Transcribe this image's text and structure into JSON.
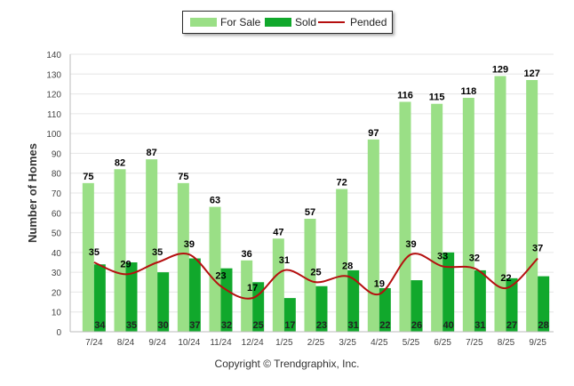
{
  "chart_data": {
    "type": "bar",
    "title": "",
    "xlabel": "",
    "ylabel": "Number of Homes",
    "ylim": [
      0,
      140
    ],
    "yticks": [
      0,
      10,
      20,
      30,
      40,
      50,
      60,
      70,
      80,
      90,
      100,
      110,
      120,
      130,
      140
    ],
    "grid": true,
    "legend_position": "top-center",
    "categories": [
      "7/24",
      "8/24",
      "9/24",
      "10/24",
      "11/24",
      "12/24",
      "1/25",
      "2/25",
      "3/25",
      "4/25",
      "5/25",
      "6/25",
      "7/25",
      "8/25",
      "9/25"
    ],
    "series": [
      {
        "name": "For Sale",
        "kind": "bar",
        "color": "#9adf86",
        "values": [
          75,
          82,
          87,
          75,
          63,
          36,
          47,
          57,
          72,
          97,
          116,
          115,
          118,
          129,
          127
        ]
      },
      {
        "name": "Sold",
        "kind": "bar",
        "color": "#11a82c",
        "values": [
          34,
          35,
          30,
          37,
          32,
          25,
          17,
          23,
          31,
          22,
          26,
          40,
          31,
          27,
          28
        ]
      },
      {
        "name": "Pended",
        "kind": "line",
        "color": "#b50f0f",
        "values": [
          35,
          29,
          35,
          39,
          23,
          17,
          31,
          25,
          28,
          19,
          39,
          33,
          32,
          22,
          37
        ]
      }
    ]
  },
  "legend": {
    "for_sale_label": "For Sale",
    "sold_label": "Sold",
    "pended_label": "Pended"
  },
  "footer": {
    "copyright": "Copyright © Trendgraphix, Inc."
  }
}
